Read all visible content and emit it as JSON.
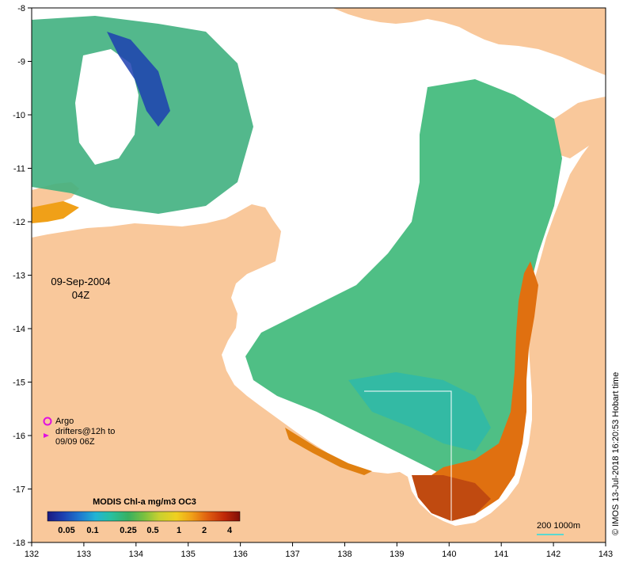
{
  "map": {
    "date": "09-Sep-2004",
    "time": "04Z",
    "colorbar_title": "MODIS Chl-a mg/m3 OC3",
    "colorbar_ticks": [
      "0.05",
      "0.1",
      "0.25",
      "0.5",
      "1",
      "2",
      "4"
    ],
    "argo_label": "Argo",
    "drifters_label_line1": "drifters@12h to",
    "drifters_label_line2": "09/09 06Z",
    "credit": "© IMOS 13-Jul-2018 16:20:53 Hobart time",
    "scale_label": "200  1000m",
    "x_ticks": [
      "132",
      "133",
      "134",
      "135",
      "136",
      "137",
      "138",
      "139",
      "140",
      "141",
      "142",
      "143"
    ],
    "y_ticks": [
      "-8",
      "-9",
      "-10",
      "-11",
      "-12",
      "-13",
      "-14",
      "-15",
      "-16",
      "-17",
      "-18"
    ],
    "colors": {
      "land": "#f9c89b",
      "chl_low": "#1c3aa6",
      "chl_mid": "#3cb878",
      "chl_high": "#e07010",
      "argo_marker": "#e010e0",
      "isobath": "#5ad8d0"
    },
    "colorbar_colors": [
      "#1a1a80",
      "#1d3fb0",
      "#1f7ad0",
      "#22b4d4",
      "#28c0a0",
      "#38b060",
      "#78c040",
      "#c8d030",
      "#f0d020",
      "#f0a018",
      "#e06010",
      "#c02808",
      "#801008"
    ]
  }
}
